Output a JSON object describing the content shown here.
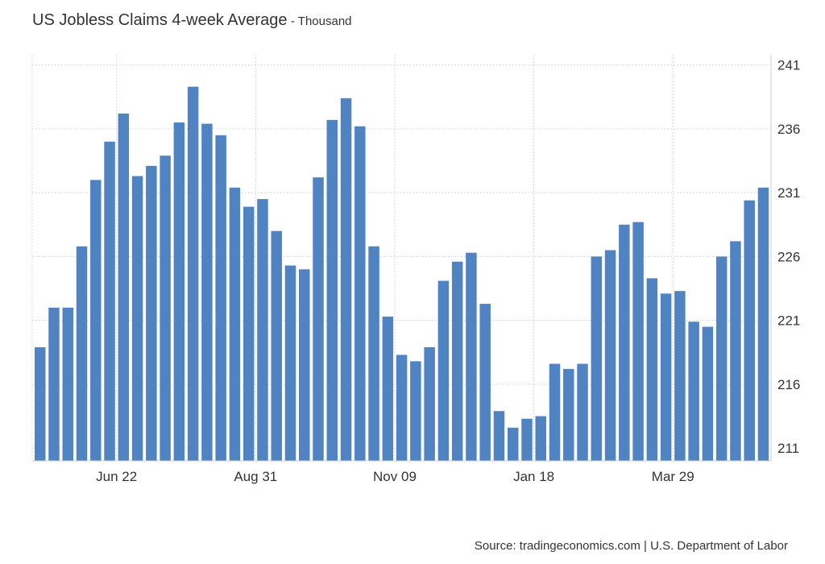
{
  "header": {
    "title": "US Jobless Claims 4-week Average",
    "subtitle": "- Thousand"
  },
  "footer": {
    "source": "Source: tradingeconomics.com | U.S. Department of Labor"
  },
  "colors": {
    "bar": "#4f83c2",
    "grid": "#d9d9d9",
    "axis": "#cccccc"
  },
  "chart_data": {
    "type": "bar",
    "title": "US Jobless Claims 4-week Average",
    "subtitle": "- Thousand",
    "xlabel": "",
    "ylabel": "",
    "ylim": [
      210,
      241.8
    ],
    "yticks": [
      211,
      216,
      221,
      226,
      231,
      236,
      241
    ],
    "y_axis_position": "right",
    "grid": true,
    "xtick_labels": [
      "Jun 22",
      "Aug 31",
      "Nov 09",
      "Jan 18",
      "Mar 29"
    ],
    "xtick_bar_index": [
      5,
      15,
      25,
      35,
      45
    ],
    "values": [
      218.9,
      222.0,
      222.0,
      226.8,
      232.0,
      235.0,
      237.2,
      232.3,
      233.1,
      233.9,
      236.5,
      239.3,
      236.4,
      235.5,
      231.4,
      229.9,
      230.5,
      228.0,
      225.3,
      225.0,
      232.2,
      236.7,
      238.4,
      236.2,
      226.8,
      221.3,
      218.3,
      217.8,
      218.9,
      224.1,
      225.6,
      226.3,
      222.3,
      213.9,
      212.6,
      213.3,
      213.5,
      217.6,
      217.2,
      217.6,
      226.0,
      226.5,
      228.5,
      228.7,
      224.3,
      223.1,
      223.3,
      220.9,
      220.5,
      226.0,
      227.2,
      230.4,
      231.4
    ]
  }
}
